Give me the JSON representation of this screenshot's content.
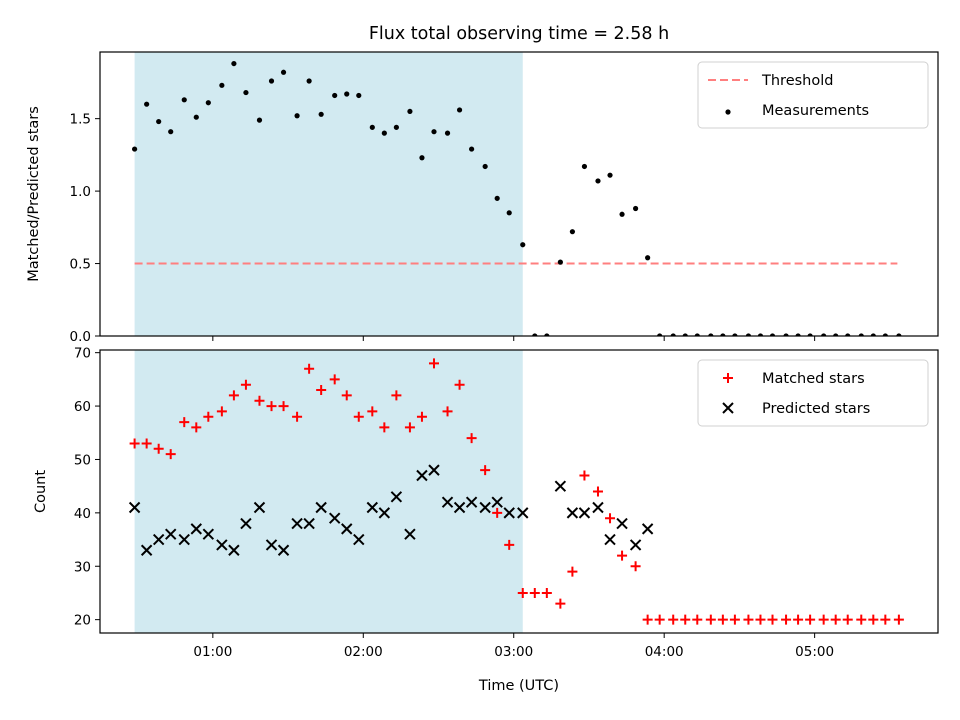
{
  "title": "Flux total observing time = 2.58 h",
  "colors": {
    "shade": "#add8e6",
    "threshold": "#ff7f7f",
    "measurement": "#000000",
    "matched": "#ff0000",
    "predicted": "#000000"
  },
  "chart_data": [
    {
      "type": "scatter",
      "ylabel": "Matched/Predicted stars",
      "ylim": [
        0,
        1.96
      ],
      "xlim": [
        0.25,
        5.82
      ],
      "yticks": [
        {
          "value": 0.0,
          "label": "0.0"
        },
        {
          "value": 0.5,
          "label": "0.5"
        },
        {
          "value": 1.0,
          "label": "1.0"
        },
        {
          "value": 1.5,
          "label": "1.5"
        }
      ],
      "shaded_span": [
        0.48,
        3.06
      ],
      "legend": {
        "placement": "upper right",
        "entries": [
          "Threshold",
          "Measurements"
        ]
      },
      "threshold": {
        "name": "Threshold",
        "value": 0.5,
        "x_range": [
          0.48,
          5.55
        ],
        "style": "dashed"
      },
      "series": [
        {
          "name": "Measurements",
          "marker": "dot",
          "points": [
            [
              0.48,
              1.29
            ],
            [
              0.56,
              1.6
            ],
            [
              0.64,
              1.48
            ],
            [
              0.72,
              1.41
            ],
            [
              0.81,
              1.63
            ],
            [
              0.89,
              1.51
            ],
            [
              0.97,
              1.61
            ],
            [
              1.06,
              1.73
            ],
            [
              1.14,
              1.88
            ],
            [
              1.22,
              1.68
            ],
            [
              1.31,
              1.49
            ],
            [
              1.39,
              1.76
            ],
            [
              1.47,
              1.82
            ],
            [
              1.56,
              1.52
            ],
            [
              1.64,
              1.76
            ],
            [
              1.72,
              1.53
            ],
            [
              1.81,
              1.66
            ],
            [
              1.89,
              1.67
            ],
            [
              1.97,
              1.66
            ],
            [
              2.06,
              1.44
            ],
            [
              2.14,
              1.4
            ],
            [
              2.22,
              1.44
            ],
            [
              2.31,
              1.55
            ],
            [
              2.39,
              1.23
            ],
            [
              2.47,
              1.41
            ],
            [
              2.56,
              1.4
            ],
            [
              2.64,
              1.56
            ],
            [
              2.72,
              1.29
            ],
            [
              2.81,
              1.17
            ],
            [
              2.89,
              0.95
            ],
            [
              2.97,
              0.85
            ],
            [
              3.06,
              0.63
            ],
            [
              3.14,
              0.0
            ],
            [
              3.22,
              0.0
            ],
            [
              3.31,
              0.51
            ],
            [
              3.39,
              0.72
            ],
            [
              3.47,
              1.17
            ],
            [
              3.56,
              1.07
            ],
            [
              3.64,
              1.11
            ],
            [
              3.72,
              0.84
            ],
            [
              3.81,
              0.88
            ],
            [
              3.89,
              0.54
            ],
            [
              3.97,
              0.0
            ],
            [
              4.06,
              0.0
            ],
            [
              4.14,
              0.0
            ],
            [
              4.22,
              0.0
            ],
            [
              4.31,
              0.0
            ],
            [
              4.39,
              0.0
            ],
            [
              4.47,
              0.0
            ],
            [
              4.56,
              0.0
            ],
            [
              4.64,
              0.0
            ],
            [
              4.72,
              0.0
            ],
            [
              4.81,
              0.0
            ],
            [
              4.89,
              0.0
            ],
            [
              4.97,
              0.0
            ],
            [
              5.06,
              0.0
            ],
            [
              5.14,
              0.0
            ],
            [
              5.22,
              0.0
            ],
            [
              5.31,
              0.0
            ],
            [
              5.39,
              0.0
            ],
            [
              5.47,
              0.0
            ],
            [
              5.56,
              0.0
            ]
          ]
        }
      ]
    },
    {
      "type": "scatter",
      "xlabel": "Time (UTC)",
      "ylabel": "Count",
      "ylim": [
        17.5,
        70.5
      ],
      "xlim": [
        0.25,
        5.82
      ],
      "yticks": [
        {
          "value": 20,
          "label": "20"
        },
        {
          "value": 30,
          "label": "30"
        },
        {
          "value": 40,
          "label": "40"
        },
        {
          "value": 50,
          "label": "50"
        },
        {
          "value": 60,
          "label": "60"
        },
        {
          "value": 70,
          "label": "70"
        }
      ],
      "xticks": [
        {
          "value": 1,
          "label": "01:00"
        },
        {
          "value": 2,
          "label": "02:00"
        },
        {
          "value": 3,
          "label": "03:00"
        },
        {
          "value": 4,
          "label": "04:00"
        },
        {
          "value": 5,
          "label": "05:00"
        }
      ],
      "shaded_span": [
        0.48,
        3.06
      ],
      "legend": {
        "placement": "upper right",
        "entries": [
          "Matched stars",
          "Predicted stars"
        ]
      },
      "series": [
        {
          "name": "Matched stars",
          "marker": "plus",
          "points": [
            [
              0.48,
              53
            ],
            [
              0.56,
              53
            ],
            [
              0.64,
              52
            ],
            [
              0.72,
              51
            ],
            [
              0.81,
              57
            ],
            [
              0.89,
              56
            ],
            [
              0.97,
              58
            ],
            [
              1.06,
              59
            ],
            [
              1.14,
              62
            ],
            [
              1.22,
              64
            ],
            [
              1.31,
              61
            ],
            [
              1.39,
              60
            ],
            [
              1.47,
              60
            ],
            [
              1.56,
              58
            ],
            [
              1.64,
              67
            ],
            [
              1.72,
              63
            ],
            [
              1.81,
              65
            ],
            [
              1.89,
              62
            ],
            [
              1.97,
              58
            ],
            [
              2.06,
              59
            ],
            [
              2.14,
              56
            ],
            [
              2.22,
              62
            ],
            [
              2.31,
              56
            ],
            [
              2.39,
              58
            ],
            [
              2.47,
              68
            ],
            [
              2.56,
              59
            ],
            [
              2.64,
              64
            ],
            [
              2.72,
              54
            ],
            [
              2.81,
              48
            ],
            [
              2.89,
              40
            ],
            [
              2.97,
              34
            ],
            [
              3.06,
              25
            ],
            [
              3.14,
              25
            ],
            [
              3.22,
              25
            ],
            [
              3.31,
              23
            ],
            [
              3.39,
              29
            ],
            [
              3.47,
              47
            ],
            [
              3.56,
              44
            ],
            [
              3.64,
              39
            ],
            [
              3.72,
              32
            ],
            [
              3.81,
              30
            ],
            [
              3.89,
              20
            ],
            [
              3.97,
              20
            ],
            [
              4.06,
              20
            ],
            [
              4.14,
              20
            ],
            [
              4.22,
              20
            ],
            [
              4.31,
              20
            ],
            [
              4.39,
              20
            ],
            [
              4.47,
              20
            ],
            [
              4.56,
              20
            ],
            [
              4.64,
              20
            ],
            [
              4.72,
              20
            ],
            [
              4.81,
              20
            ],
            [
              4.89,
              20
            ],
            [
              4.97,
              20
            ],
            [
              5.06,
              20
            ],
            [
              5.14,
              20
            ],
            [
              5.22,
              20
            ],
            [
              5.31,
              20
            ],
            [
              5.39,
              20
            ],
            [
              5.47,
              20
            ],
            [
              5.56,
              20
            ]
          ]
        },
        {
          "name": "Predicted stars",
          "marker": "x",
          "points": [
            [
              0.48,
              41
            ],
            [
              0.56,
              33
            ],
            [
              0.64,
              35
            ],
            [
              0.72,
              36
            ],
            [
              0.81,
              35
            ],
            [
              0.89,
              37
            ],
            [
              0.97,
              36
            ],
            [
              1.06,
              34
            ],
            [
              1.14,
              33
            ],
            [
              1.22,
              38
            ],
            [
              1.31,
              41
            ],
            [
              1.39,
              34
            ],
            [
              1.47,
              33
            ],
            [
              1.56,
              38
            ],
            [
              1.64,
              38
            ],
            [
              1.72,
              41
            ],
            [
              1.81,
              39
            ],
            [
              1.89,
              37
            ],
            [
              1.97,
              35
            ],
            [
              2.06,
              41
            ],
            [
              2.14,
              40
            ],
            [
              2.22,
              43
            ],
            [
              2.31,
              36
            ],
            [
              2.39,
              47
            ],
            [
              2.47,
              48
            ],
            [
              2.56,
              42
            ],
            [
              2.64,
              41
            ],
            [
              2.72,
              42
            ],
            [
              2.81,
              41
            ],
            [
              2.89,
              42
            ],
            [
              2.97,
              40
            ],
            [
              3.06,
              40
            ],
            [
              3.31,
              45
            ],
            [
              3.39,
              40
            ],
            [
              3.47,
              40
            ],
            [
              3.56,
              41
            ],
            [
              3.64,
              35
            ],
            [
              3.72,
              38
            ],
            [
              3.81,
              34
            ],
            [
              3.89,
              37
            ]
          ]
        }
      ]
    }
  ]
}
